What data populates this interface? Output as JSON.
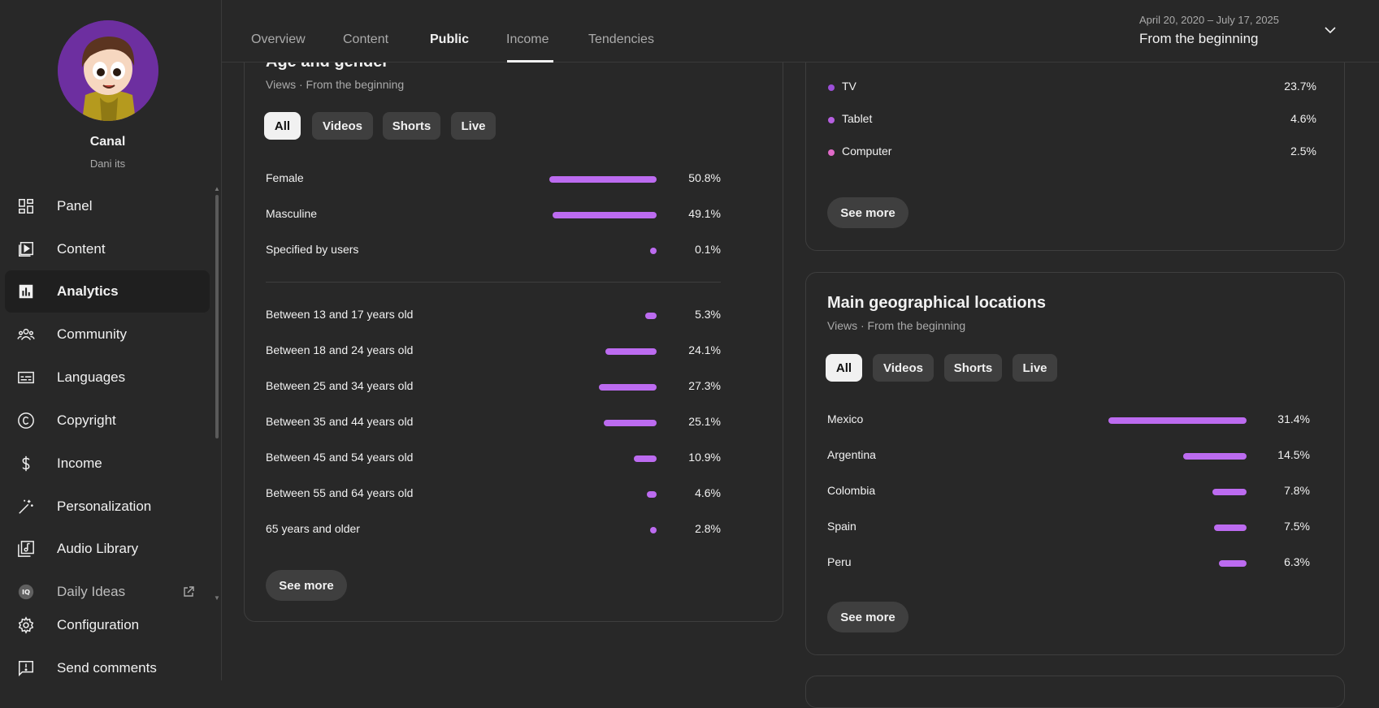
{
  "colors": {
    "accent": "#bc6bf0",
    "tv_dot": "#9c4fd8",
    "tablet_dot": "#b65fe0",
    "computer_dot": "#e06ac8"
  },
  "channel": {
    "name": "Canal",
    "handle": "Dani its"
  },
  "sidebar": {
    "items": [
      {
        "label": "Panel",
        "icon": "dashboard-icon"
      },
      {
        "label": "Content",
        "icon": "video-library-icon"
      },
      {
        "label": "Analytics",
        "icon": "analytics-icon"
      },
      {
        "label": "Community",
        "icon": "community-icon"
      },
      {
        "label": "Languages",
        "icon": "subtitles-icon"
      },
      {
        "label": "Copyright",
        "icon": "copyright-icon"
      },
      {
        "label": "Income",
        "icon": "dollar-icon"
      },
      {
        "label": "Personalization",
        "icon": "magic-wand-icon"
      },
      {
        "label": "Audio Library",
        "icon": "audio-library-icon"
      },
      {
        "label": "Daily Ideas",
        "icon": "ideas-icon"
      },
      {
        "label": "Configuration",
        "icon": "gear-icon"
      },
      {
        "label": "Send comments",
        "icon": "feedback-icon"
      }
    ]
  },
  "tabs": [
    "Overview",
    "Content",
    "Public",
    "Income",
    "Tendencies"
  ],
  "date": {
    "range": "April 20, 2020 – July 17, 2025",
    "label": "From the beginning"
  },
  "age_gender": {
    "title": "Age and gender",
    "subtitle": "Views · From the beginning",
    "chips": [
      "All",
      "Videos",
      "Shorts",
      "Live"
    ],
    "gender": [
      {
        "label": "Female",
        "value": "50.8%",
        "pct": 50.8
      },
      {
        "label": "Masculine",
        "value": "49.1%",
        "pct": 49.1
      },
      {
        "label": "Specified by users",
        "value": "0.1%",
        "pct": 0.1
      }
    ],
    "age": [
      {
        "label": "Between 13 and 17 years old",
        "value": "5.3%",
        "pct": 5.3
      },
      {
        "label": "Between 18 and 24 years old",
        "value": "24.1%",
        "pct": 24.1
      },
      {
        "label": "Between 25 and 34 years old",
        "value": "27.3%",
        "pct": 27.3
      },
      {
        "label": "Between 35 and 44 years old",
        "value": "25.1%",
        "pct": 25.1
      },
      {
        "label": "Between 45 and 54 years old",
        "value": "10.9%",
        "pct": 10.9
      },
      {
        "label": "Between 55 and 64 years old",
        "value": "4.6%",
        "pct": 4.6
      },
      {
        "label": "65 years and older",
        "value": "2.8%",
        "pct": 2.8
      }
    ],
    "see_more": "See more"
  },
  "devices": {
    "rows": [
      {
        "label": "TV",
        "value": "23.7%"
      },
      {
        "label": "Tablet",
        "value": "4.6%"
      },
      {
        "label": "Computer",
        "value": "2.5%"
      }
    ],
    "see_more": "See more"
  },
  "geo": {
    "title": "Main geographical locations",
    "subtitle": "Views · From the beginning",
    "chips": [
      "All",
      "Videos",
      "Shorts",
      "Live"
    ],
    "rows": [
      {
        "label": "Mexico",
        "value": "31.4%",
        "pct": 31.4
      },
      {
        "label": "Argentina",
        "value": "14.5%",
        "pct": 14.5
      },
      {
        "label": "Colombia",
        "value": "7.8%",
        "pct": 7.8
      },
      {
        "label": "Spain",
        "value": "7.5%",
        "pct": 7.5
      },
      {
        "label": "Peru",
        "value": "6.3%",
        "pct": 6.3
      }
    ],
    "see_more": "See more"
  }
}
